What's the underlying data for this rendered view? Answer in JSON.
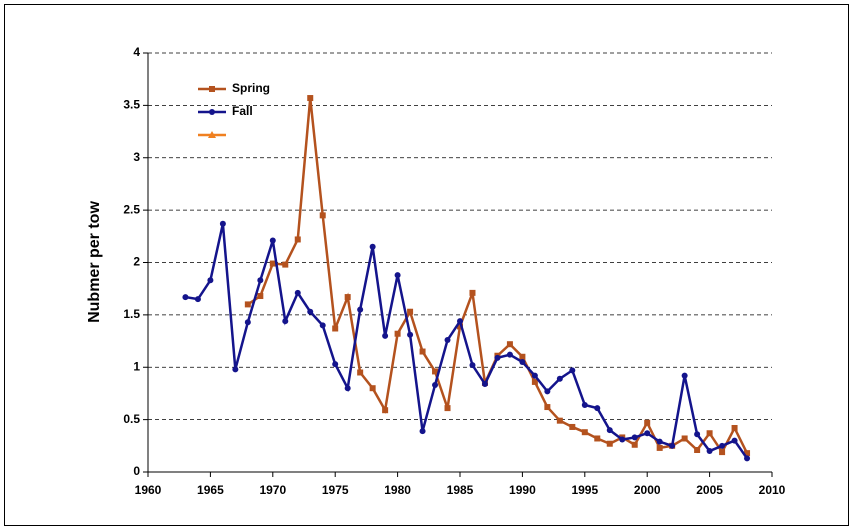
{
  "chart_data": {
    "type": "line",
    "y_label": "Nubmer per tow",
    "xlim": [
      1960,
      2010
    ],
    "xticks": [
      1960,
      1965,
      1970,
      1975,
      1980,
      1985,
      1990,
      1995,
      2000,
      2005,
      2010
    ],
    "ylim": [
      0,
      4
    ],
    "yticks": [
      0,
      {
        "value": 0.5,
        "label": "0.5"
      },
      1,
      {
        "value": 1.5,
        "label": "1.5"
      },
      2,
      {
        "value": 2.5,
        "label": "2.5"
      },
      3,
      {
        "value": 3.5,
        "label": "3.5"
      },
      4
    ],
    "grid": true,
    "series": [
      {
        "name": "Spring",
        "color": "#b4521e",
        "marker": "square",
        "x": [
          1968,
          1969,
          1970,
          1971,
          1972,
          1973,
          1974,
          1975,
          1976,
          1977,
          1978,
          1979,
          1980,
          1981,
          1982,
          1983,
          1984,
          1985,
          1986,
          1987,
          1988,
          1989,
          1990,
          1991,
          1992,
          1993,
          1994,
          1995,
          1996,
          1997,
          1998,
          1999,
          2000,
          2001,
          2002,
          2003,
          2004,
          2005,
          2006,
          2007,
          2008
        ],
        "values": [
          1.6,
          1.68,
          1.99,
          1.98,
          2.22,
          3.57,
          2.45,
          1.37,
          1.67,
          0.95,
          0.8,
          0.59,
          1.32,
          1.53,
          1.15,
          0.96,
          0.61,
          1.39,
          1.71,
          0.85,
          1.11,
          1.22,
          1.1,
          0.86,
          0.62,
          0.49,
          0.43,
          0.38,
          0.32,
          0.27,
          0.33,
          0.26,
          0.47,
          0.23,
          0.25,
          0.32,
          0.21,
          0.37,
          0.19,
          0.42,
          0.18
        ]
      },
      {
        "name": "Fall",
        "color": "#14148c",
        "marker": "circle",
        "x": [
          1963,
          1964,
          1965,
          1966,
          1967,
          1968,
          1969,
          1970,
          1971,
          1972,
          1973,
          1974,
          1975,
          1976,
          1977,
          1978,
          1979,
          1980,
          1981,
          1982,
          1983,
          1984,
          1985,
          1986,
          1987,
          1988,
          1989,
          1990,
          1991,
          1992,
          1993,
          1994,
          1995,
          1996,
          1997,
          1998,
          1999,
          2000,
          2001,
          2002,
          2003,
          2004,
          2005,
          2006,
          2007,
          2008
        ],
        "values": [
          1.67,
          1.65,
          1.83,
          2.37,
          0.98,
          1.43,
          1.83,
          2.21,
          1.44,
          1.71,
          1.53,
          1.4,
          1.03,
          0.8,
          1.55,
          2.15,
          1.3,
          1.88,
          1.31,
          0.39,
          0.83,
          1.26,
          1.44,
          1.02,
          0.84,
          1.09,
          1.12,
          1.05,
          0.92,
          0.77,
          0.89,
          0.97,
          0.64,
          0.61,
          0.4,
          0.31,
          0.33,
          0.37,
          0.29,
          0.25,
          0.92,
          0.36,
          0.2,
          0.25,
          0.3,
          0.13
        ]
      }
    ]
  }
}
